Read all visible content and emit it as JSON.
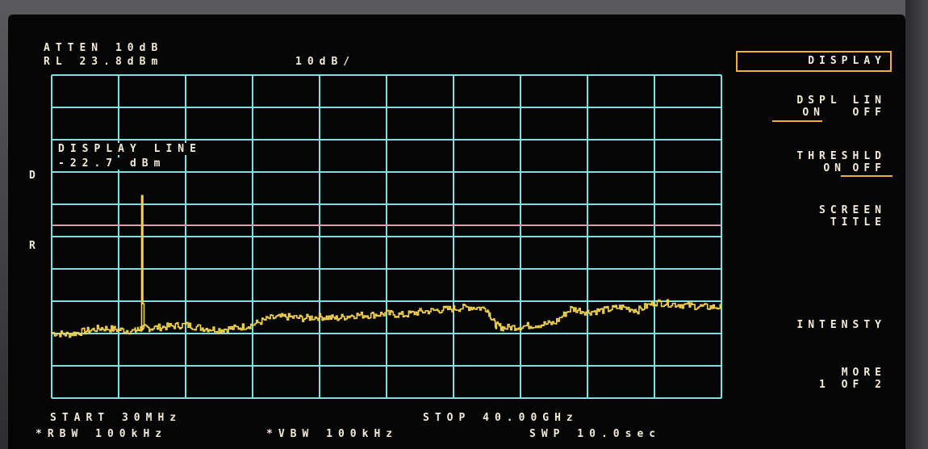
{
  "header": {
    "attenuation": "ATTEN 10dB",
    "reference_level": "RL 23.8dBm",
    "scale": "10dB/"
  },
  "marker_labels": {
    "display_line_marker": "D",
    "reference_marker": "R"
  },
  "display_line_annotation": {
    "title": "DISPLAY LINE",
    "value": "-22.7 dBm"
  },
  "softkeys": {
    "menu_title": "DISPLAY",
    "dspl_lin_title": "DSPL LIN",
    "dspl_lin_on": "ON",
    "dspl_lin_off": "OFF",
    "threshold_title": "THRESHLD",
    "threshold_on": "ON",
    "threshold_off": "OFF",
    "screen_title_line1": "SCREEN",
    "screen_title_line2": "TITLE",
    "intensity": "INTENSTY",
    "more_line1": "MORE",
    "more_line2": "1 OF 2"
  },
  "footer": {
    "start": "START 30MHz",
    "stop": "STOP 40.00GHz",
    "rbw": "*RBW 100kHz",
    "vbw": "*VBW 100kHz",
    "sweep": "SWP 10.0sec"
  },
  "colors": {
    "grid": "#7fe0e0",
    "trace": "#f0d050",
    "display_line": "#e89aa8",
    "text": "#f3ecd8",
    "highlight": "#f0b030"
  },
  "chart_data": {
    "type": "line",
    "x_unit": "GHz",
    "y_unit": "dBm",
    "xlim": [
      0.03,
      40.0
    ],
    "ylim": [
      -76.2,
      23.8
    ],
    "grid": true,
    "display_line_dbm": -22.7,
    "spur": {
      "x": 5.4,
      "y": -13.5
    },
    "x": [
      0.03,
      1.0,
      2.0,
      3.0,
      4.0,
      5.0,
      5.4,
      6.0,
      7.0,
      8.0,
      9.0,
      10.0,
      11.0,
      12.0,
      13.0,
      14.0,
      15.0,
      16.0,
      17.0,
      18.0,
      19.0,
      20.0,
      21.0,
      22.0,
      23.0,
      24.0,
      25.0,
      26.0,
      26.5,
      27.0,
      28.0,
      29.0,
      30.0,
      31.0,
      32.0,
      33.0,
      34.0,
      35.0,
      36.0,
      37.0,
      38.0,
      39.0,
      40.0
    ],
    "y": [
      -56.0,
      -56.5,
      -55.5,
      -54.5,
      -55.0,
      -55.5,
      -54.5,
      -54.5,
      -54.0,
      -53.5,
      -54.5,
      -55.0,
      -54.5,
      -53.5,
      -51.5,
      -51.0,
      -51.5,
      -51.0,
      -51.5,
      -50.5,
      -50.5,
      -50.0,
      -50.5,
      -49.5,
      -49.0,
      -48.5,
      -48.0,
      -48.5,
      -53.5,
      -54.5,
      -54.0,
      -53.5,
      -53.0,
      -48.5,
      -49.5,
      -49.0,
      -48.0,
      -49.0,
      -46.5,
      -47.0,
      -47.5,
      -48.0,
      -48.0
    ]
  }
}
